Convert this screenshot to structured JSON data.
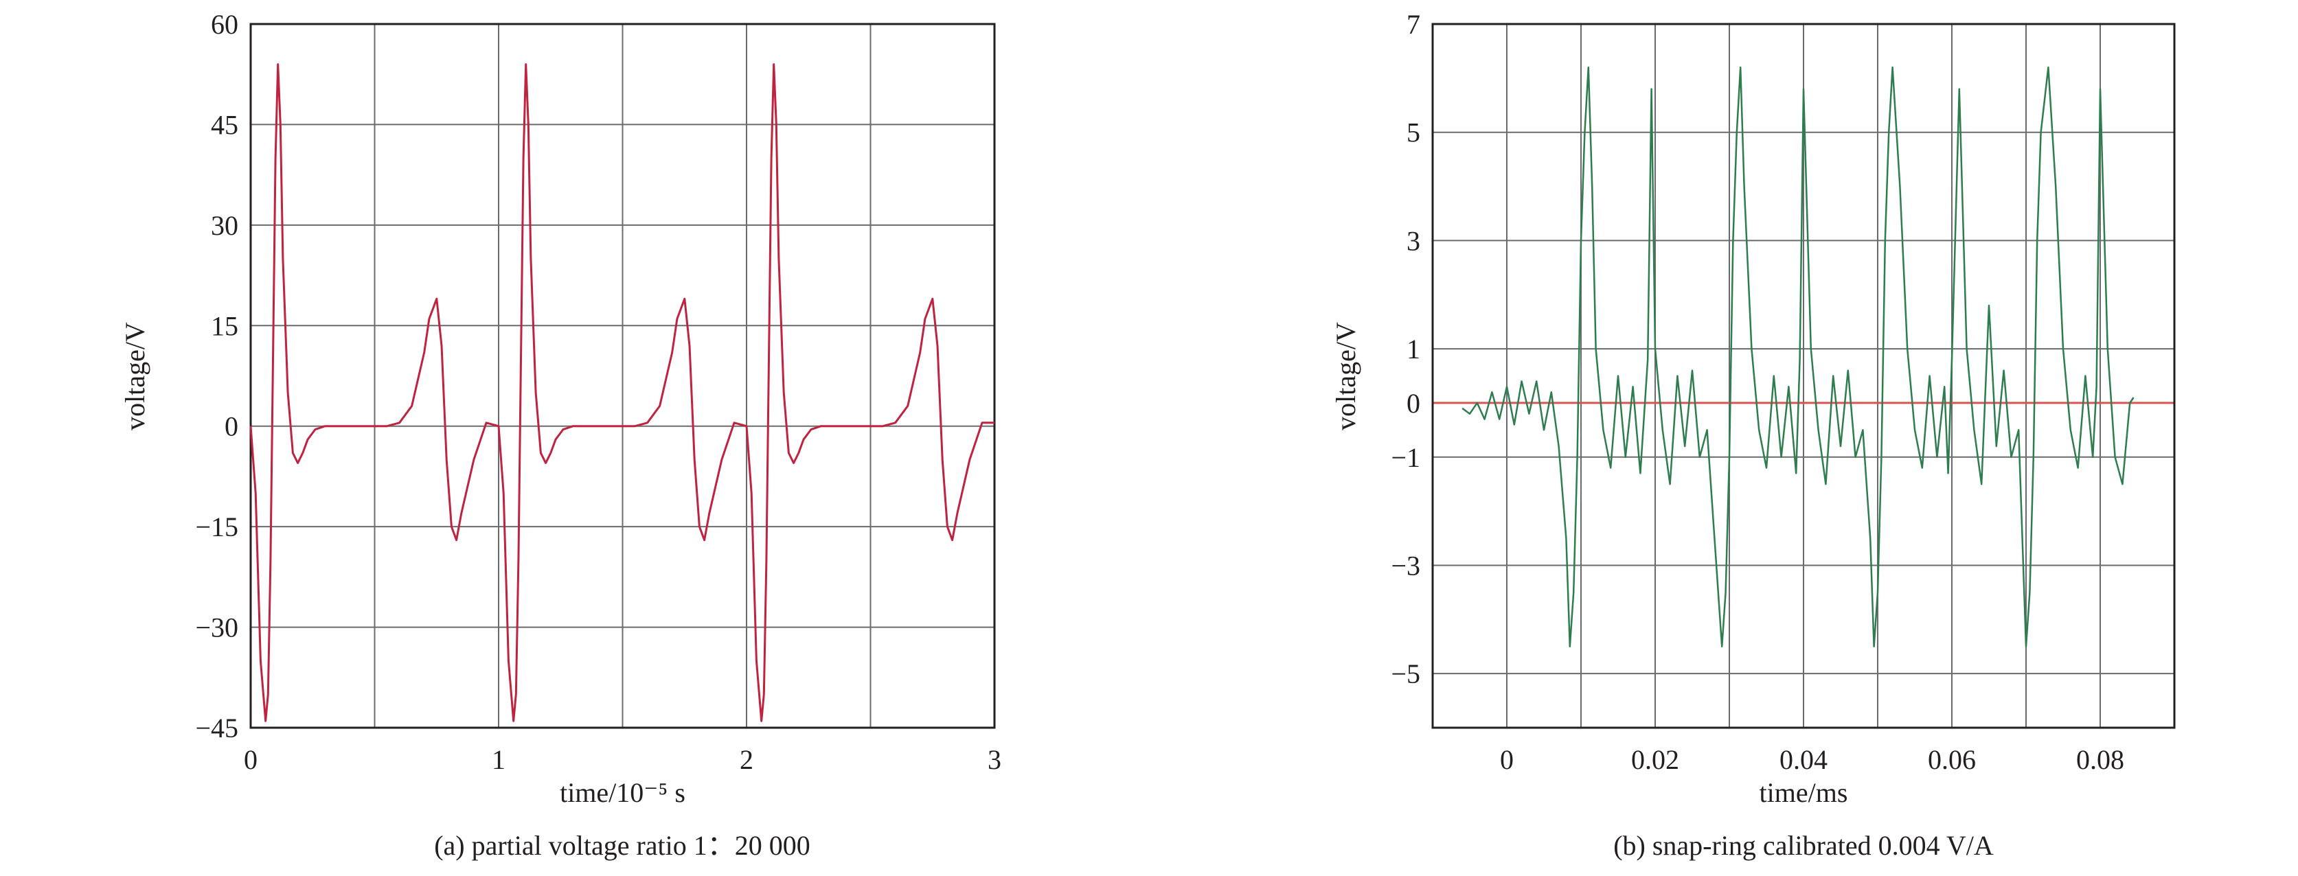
{
  "chart_data": [
    {
      "type": "line",
      "caption": "(a) partial voltage ratio 1：20 000",
      "xlabel": "time/10⁻⁵ s",
      "ylabel": "voltage/V",
      "xlim": [
        0,
        3
      ],
      "ylim": [
        -45,
        60
      ],
      "xticks": [
        0,
        1,
        2,
        3
      ],
      "xtick_labels": [
        "0",
        "1",
        "2",
        "3"
      ],
      "yticks": [
        -45,
        -30,
        -15,
        0,
        15,
        30,
        45,
        60
      ],
      "ytick_labels": [
        "−45",
        "−30",
        "−15",
        "0",
        "15",
        "30",
        "45",
        "60"
      ],
      "grid": true,
      "colors": {
        "series": "#c0233f",
        "grid": "#6b6b6b",
        "axis": "#231f20"
      },
      "series": [
        {
          "x": [
            0,
            0.02,
            0.04,
            0.06,
            0.07,
            0.08,
            0.09,
            0.1,
            0.11,
            0.12,
            0.13,
            0.15,
            0.17,
            0.19,
            0.21,
            0.23,
            0.26,
            0.3,
            0.4,
            0.5,
            0.55,
            0.6,
            0.65,
            0.7,
            0.72,
            0.75,
            0.77,
            0.79,
            0.81,
            0.83,
            0.85,
            0.9,
            0.95,
            1.0,
            1.02,
            1.04,
            1.06,
            1.07,
            1.08,
            1.09,
            1.1,
            1.11,
            1.12,
            1.13,
            1.15,
            1.17,
            1.19,
            1.21,
            1.23,
            1.26,
            1.3,
            1.4,
            1.5,
            1.55,
            1.6,
            1.65,
            1.7,
            1.72,
            1.75,
            1.77,
            1.79,
            1.81,
            1.83,
            1.85,
            1.9,
            1.95,
            2.0,
            2.02,
            2.04,
            2.06,
            2.07,
            2.08,
            2.09,
            2.1,
            2.11,
            2.12,
            2.13,
            2.15,
            2.17,
            2.19,
            2.21,
            2.23,
            2.26,
            2.3,
            2.4,
            2.5,
            2.55,
            2.6,
            2.65,
            2.7,
            2.72,
            2.75,
            2.77,
            2.79,
            2.81,
            2.83,
            2.85,
            2.9,
            2.95,
            3.0
          ],
          "y": [
            0,
            -10,
            -35,
            -44,
            -40,
            -20,
            10,
            40,
            54,
            45,
            25,
            5,
            -4,
            -5.5,
            -4,
            -2,
            -0.5,
            0,
            0,
            0,
            0,
            0.5,
            3,
            11,
            16,
            19,
            12,
            -5,
            -15,
            -17,
            -13,
            -5,
            0.5,
            0,
            -10,
            -35,
            -44,
            -40,
            -20,
            10,
            40,
            54,
            45,
            25,
            5,
            -4,
            -5.5,
            -4,
            -2,
            -0.5,
            0,
            0,
            0,
            0,
            0.5,
            3,
            11,
            16,
            19,
            12,
            -5,
            -15,
            -17,
            -13,
            -5,
            0.5,
            0,
            -10,
            -35,
            -44,
            -40,
            -20,
            10,
            40,
            54,
            45,
            25,
            5,
            -4,
            -5.5,
            -4,
            -2,
            -0.5,
            0,
            0,
            0,
            0,
            0.5,
            3,
            11,
            16,
            19,
            12,
            -5,
            -15,
            -17,
            -13,
            -5,
            0.5,
            0.5
          ]
        }
      ]
    },
    {
      "type": "line",
      "caption": "(b) snap-ring calibrated 0.004 V/A",
      "xlabel": "time/ms",
      "ylabel": "voltage/V",
      "xlim": [
        -0.01,
        0.09
      ],
      "ylim": [
        -6,
        7
      ],
      "xticks": [
        0,
        0.02,
        0.04,
        0.06,
        0.08
      ],
      "xtick_labels": [
        "0",
        "0.02",
        "0.04",
        "0.06",
        "0.08"
      ],
      "yticks": [
        -5,
        -3,
        -1,
        0,
        1,
        3,
        5,
        7
      ],
      "ytick_labels": [
        "−5",
        "−3",
        "−1",
        "0",
        "1",
        "3",
        "5",
        "7"
      ],
      "grid": true,
      "zero_line_color": "#d9534f",
      "colors": {
        "series": "#2e7d4f",
        "grid": "#6b6b6b",
        "axis": "#231f20",
        "zero_line": "#d9534f"
      },
      "series": [
        {
          "x": [
            -0.006,
            -0.005,
            -0.004,
            -0.003,
            -0.002,
            -0.001,
            0,
            0.001,
            0.002,
            0.003,
            0.004,
            0.005,
            0.006,
            0.007,
            0.008,
            0.0085,
            0.009,
            0.0095,
            0.01,
            0.0105,
            0.011,
            0.0115,
            0.012,
            0.013,
            0.014,
            0.015,
            0.016,
            0.017,
            0.018,
            0.019,
            0.0195,
            0.02,
            0.021,
            0.022,
            0.023,
            0.024,
            0.025,
            0.026,
            0.027,
            0.028,
            0.029,
            0.0295,
            0.03,
            0.0305,
            0.031,
            0.0315,
            0.032,
            0.033,
            0.034,
            0.035,
            0.036,
            0.037,
            0.038,
            0.039,
            0.0395,
            0.04,
            0.041,
            0.042,
            0.043,
            0.044,
            0.045,
            0.046,
            0.047,
            0.048,
            0.049,
            0.0495,
            0.05,
            0.0505,
            0.051,
            0.0515,
            0.052,
            0.053,
            0.054,
            0.055,
            0.056,
            0.057,
            0.058,
            0.059,
            0.0595,
            0.06,
            0.061,
            0.062,
            0.063,
            0.064,
            0.065,
            0.066,
            0.067,
            0.068,
            0.069,
            0.0695,
            0.07,
            0.0705,
            0.071,
            0.0715,
            0.072,
            0.073,
            0.074,
            0.075,
            0.076,
            0.077,
            0.078,
            0.079,
            0.0795,
            0.08,
            0.081,
            0.082,
            0.083,
            0.084,
            0.0845
          ],
          "y": [
            -0.1,
            -0.2,
            0,
            -0.3,
            0.2,
            -0.3,
            0.3,
            -0.4,
            0.4,
            -0.2,
            0.4,
            -0.5,
            0.2,
            -0.8,
            -2.5,
            -4.5,
            -3.5,
            -1,
            3,
            5,
            6.2,
            4,
            1,
            -0.5,
            -1.2,
            0.5,
            -1,
            0.3,
            -1.3,
            0.8,
            5.8,
            1,
            -0.5,
            -1.5,
            0.5,
            -0.8,
            0.6,
            -1,
            -0.5,
            -2.5,
            -4.5,
            -3.5,
            -1,
            3,
            5,
            6.2,
            4,
            1,
            -0.5,
            -1.2,
            0.5,
            -1,
            0.3,
            -1.3,
            0.8,
            5.8,
            1,
            -0.5,
            -1.5,
            0.5,
            -0.8,
            0.6,
            -1,
            -0.5,
            -2.5,
            -4.5,
            -3.5,
            -1,
            3,
            5,
            6.2,
            4,
            1,
            -0.5,
            -1.2,
            0.5,
            -1,
            0.3,
            -1.3,
            0.8,
            5.8,
            1,
            -0.5,
            -1.5,
            1.8,
            -0.8,
            0.6,
            -1,
            -0.5,
            -2.5,
            -4.5,
            -3.5,
            -1,
            3,
            5,
            6.2,
            4,
            1,
            -0.5,
            -1.2,
            0.5,
            -1,
            0.3,
            5.8,
            1,
            -1,
            -1.5,
            0,
            0.1
          ]
        }
      ]
    }
  ]
}
